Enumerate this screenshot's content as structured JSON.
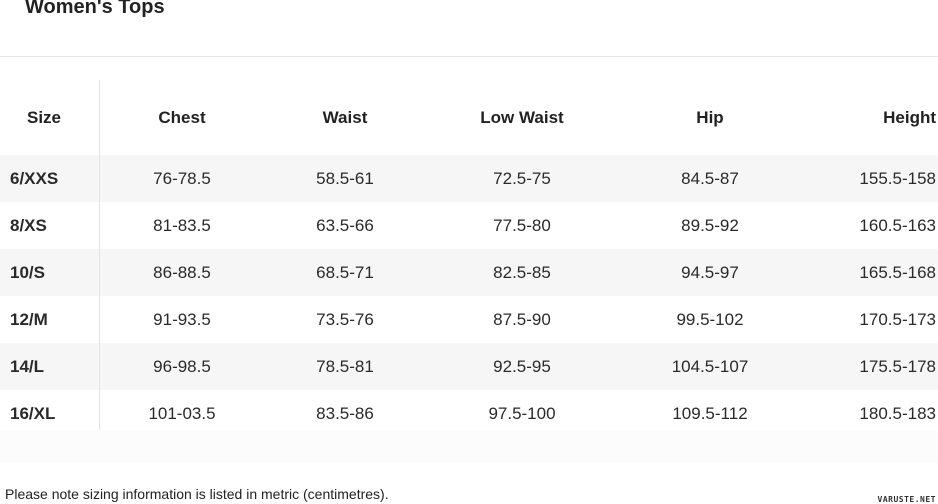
{
  "title": "Women's Tops",
  "table": {
    "headers": [
      "Size",
      "Chest",
      "Waist",
      "Low Waist",
      "Hip",
      "Height"
    ],
    "rows": [
      [
        "6/XXS",
        "76-78.5",
        "58.5-61",
        "72.5-75",
        "84.5-87",
        "155.5-158"
      ],
      [
        "8/XS",
        "81-83.5",
        "63.5-66",
        "77.5-80",
        "89.5-92",
        "160.5-163"
      ],
      [
        "10/S",
        "86-88.5",
        "68.5-71",
        "82.5-85",
        "94.5-97",
        "165.5-168"
      ],
      [
        "12/M",
        "91-93.5",
        "73.5-76",
        "87.5-90",
        "99.5-102",
        "170.5-173"
      ],
      [
        "14/L",
        "96-98.5",
        "78.5-81",
        "92.5-95",
        "104.5-107",
        "175.5-178"
      ],
      [
        "16/XL",
        "101-03.5",
        "83.5-86",
        "97.5-100",
        "109.5-112",
        "180.5-183"
      ]
    ]
  },
  "note": "Please note sizing information is listed in metric (centimetres).",
  "watermark": "VARUSTE.NET"
}
